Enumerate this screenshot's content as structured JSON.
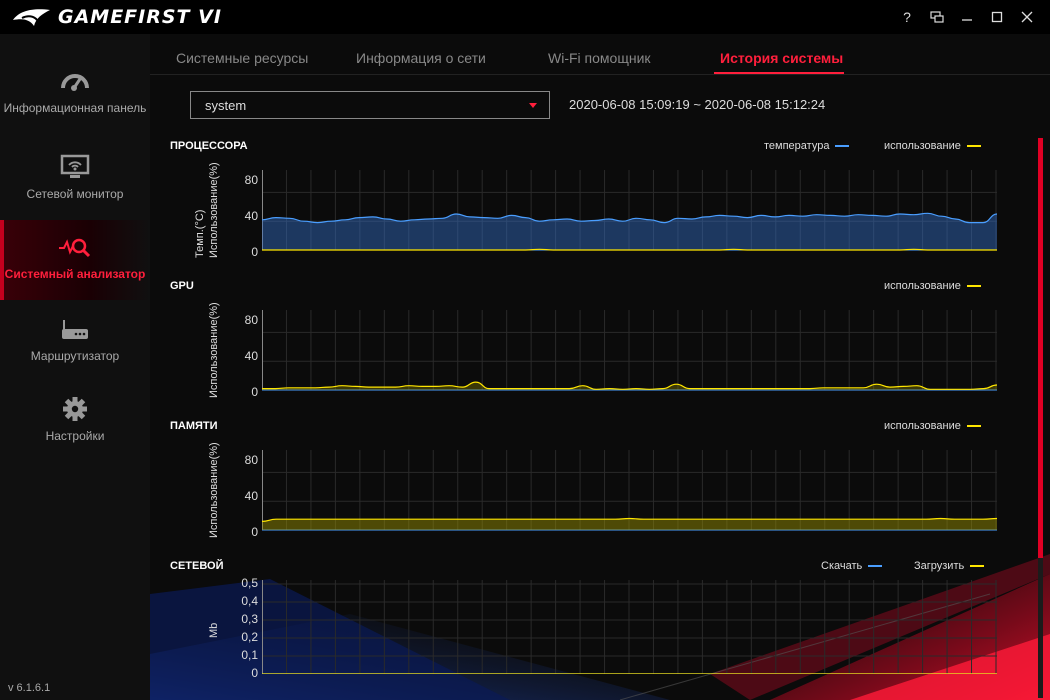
{
  "app": {
    "title": "GAMEFIRST VI",
    "version": "v 6.1.6.1"
  },
  "window_controls": {
    "help": "?",
    "restore_mini": "⧉",
    "minimize": "—",
    "maximize": "☐",
    "close": "✕"
  },
  "sidebar": {
    "items": [
      {
        "label": "Информационная панель",
        "icon": "speedometer-icon"
      },
      {
        "label": "Сетевой монитор",
        "icon": "monitor-icon"
      },
      {
        "label": "Системный анализатор",
        "icon": "pulse-search-icon",
        "active": true
      },
      {
        "label": "Маршрутизатор",
        "icon": "router-icon"
      },
      {
        "label": "Настройки",
        "icon": "gear-icon"
      }
    ]
  },
  "tabs": [
    {
      "label": "Системные ресурсы"
    },
    {
      "label": "Информация о сети"
    },
    {
      "label": "Wi-Fi помощник"
    },
    {
      "label": "История системы",
      "active": true
    }
  ],
  "filter": {
    "select_value": "system",
    "date_range": "2020-06-08 15:09:19 ~ 2020-06-08 15:12:24"
  },
  "colors": {
    "accent": "#ff1f3c",
    "temperature": "#4a9eff",
    "usage": "#ffe600",
    "download": "#4a9eff",
    "upload": "#ffe600"
  },
  "sections": {
    "cpu": {
      "title": "ПРОЦЕССОРА",
      "legend_temp": "температура",
      "legend_usage": "использование",
      "ylabel_usage": "Использование(%)",
      "ylabel_temp": "Темп.(°C)"
    },
    "gpu": {
      "title": "GPU",
      "legend_usage": "использование",
      "ylabel": "Использование(%)"
    },
    "memory": {
      "title": "ПАМЯТИ",
      "legend_usage": "использование",
      "ylabel": "Использование(%)"
    },
    "network": {
      "title": "СЕТЕВОЙ",
      "legend_download": "Скачать",
      "legend_upload": "Загрузить",
      "ylabel": "Mb"
    }
  },
  "chart_data": [
    {
      "type": "area",
      "title": "ПРОЦЕССОРА",
      "ylabel": "Использование(%)",
      "ylim": [
        0,
        100
      ],
      "yticks": [
        "80",
        "40",
        "0"
      ],
      "grid": true,
      "series": [
        {
          "name": "температура",
          "values": [
            42,
            45,
            44,
            40,
            38,
            40,
            42,
            45,
            46,
            43,
            40,
            42,
            43,
            44,
            50,
            46,
            45,
            44,
            48,
            45,
            40,
            42,
            43,
            40,
            41,
            43,
            40,
            44,
            42,
            38,
            44,
            43,
            46,
            48,
            47,
            45,
            48,
            46,
            48,
            47,
            49,
            48,
            47,
            49,
            48,
            47,
            50,
            49,
            51,
            47,
            43,
            38,
            38,
            50
          ]
        },
        {
          "name": "использование",
          "values": [
            0,
            0,
            0,
            0,
            0,
            0,
            0,
            0,
            0,
            0,
            0,
            0,
            0,
            0,
            0,
            0,
            0,
            0,
            0,
            0,
            1,
            0,
            0,
            0,
            0,
            0,
            0,
            0,
            0,
            0,
            0,
            0,
            0,
            0,
            1,
            0,
            0,
            0,
            0,
            0,
            0,
            0,
            0,
            0,
            0,
            0,
            0,
            1,
            0,
            0,
            0,
            0,
            0,
            0
          ]
        }
      ]
    },
    {
      "type": "area",
      "title": "GPU",
      "ylabel": "Использование(%)",
      "ylim": [
        0,
        100
      ],
      "yticks": [
        "80",
        "40",
        "0"
      ],
      "grid": true,
      "series": [
        {
          "name": "использование",
          "values": [
            2,
            2,
            3,
            3,
            3,
            4,
            6,
            5,
            4,
            4,
            4,
            6,
            5,
            5,
            6,
            4,
            11,
            2,
            2,
            2,
            2,
            2,
            2,
            2,
            6,
            1,
            2,
            1,
            2,
            1,
            2,
            8,
            2,
            2,
            2,
            2,
            2,
            2,
            2,
            2,
            2,
            2,
            3,
            3,
            3,
            3,
            8,
            4,
            5,
            6,
            1,
            1,
            1,
            1,
            2,
            7
          ]
        }
      ]
    },
    {
      "type": "area",
      "title": "ПАМЯТИ",
      "ylabel": "Использование(%)",
      "ylim": [
        0,
        100
      ],
      "yticks": [
        "80",
        "40",
        "0"
      ],
      "grid": true,
      "series": [
        {
          "name": "использование",
          "values": [
            12,
            15,
            15,
            15,
            15,
            15,
            15,
            15,
            15,
            15,
            15,
            15,
            15,
            15,
            15,
            15,
            15,
            15,
            15,
            15,
            15,
            15,
            15,
            15,
            15,
            15,
            16,
            15,
            15,
            15,
            15,
            15,
            15,
            15,
            15,
            15,
            15,
            15,
            15,
            15,
            15,
            15,
            15,
            15,
            15,
            15,
            15,
            15,
            16,
            15,
            15,
            15,
            16
          ]
        }
      ]
    },
    {
      "type": "line",
      "title": "СЕТЕВОЙ",
      "ylabel": "Mb",
      "ylim": [
        0,
        0.5
      ],
      "yticks": [
        "0,5",
        "0,4",
        "0,3",
        "0,2",
        "0,1",
        "0"
      ],
      "grid": true,
      "series": [
        {
          "name": "Скачать",
          "values": [
            0,
            0,
            0,
            0,
            0,
            0,
            0,
            0,
            0,
            0,
            0,
            0,
            0,
            0,
            0,
            0,
            0,
            0,
            0,
            0
          ]
        },
        {
          "name": "Загрузить",
          "values": [
            0,
            0,
            0,
            0,
            0,
            0,
            0,
            0,
            0,
            0,
            0,
            0,
            0,
            0,
            0,
            0,
            0,
            0,
            0,
            0
          ]
        }
      ]
    }
  ]
}
